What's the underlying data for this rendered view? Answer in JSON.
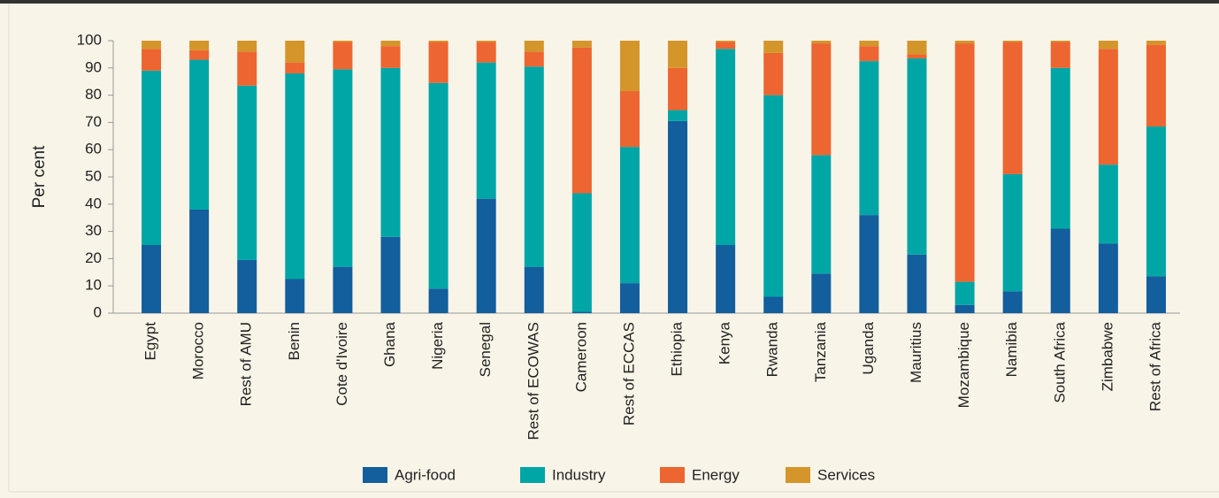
{
  "chart_data": {
    "type": "stacked_bar",
    "y_label": "Per cent",
    "categories": [
      "Egypt",
      "Morocco",
      "Rest of AMU",
      "Benin",
      "Cote d'Ivoire",
      "Ghana",
      "Nigeria",
      "Senegal",
      "Rest of ECOWAS",
      "Cameroon",
      "Rest of ECCAS",
      "Ethiopia",
      "Kenya",
      "Rwanda",
      "Tanzania",
      "Uganda",
      "Mauritius",
      "Mozambique",
      "Namibia",
      "South Africa",
      "Zimbabwe",
      "Rest of Africa"
    ],
    "series": [
      {
        "name": "Agri-food",
        "color": "#135e9c",
        "values": [
          25,
          38,
          19.5,
          12.5,
          17,
          28,
          9,
          42,
          17,
          0.5,
          11,
          70.5,
          25,
          6,
          14.5,
          36,
          21.5,
          3,
          8,
          31,
          25.5,
          13.5
        ]
      },
      {
        "name": "Industry",
        "color": "#00a6a6",
        "values": [
          64,
          55,
          64,
          75.5,
          72.5,
          62,
          75.5,
          50,
          73.5,
          43.5,
          50,
          4,
          72,
          74,
          43.5,
          56.5,
          72,
          8.5,
          43,
          59,
          29,
          55
        ]
      },
      {
        "name": "Energy",
        "color": "#ed6530",
        "values": [
          8,
          3.5,
          12.5,
          4,
          10,
          8,
          15,
          7.5,
          5.5,
          53.5,
          20.5,
          15.5,
          2.5,
          15.5,
          41,
          5.5,
          1.5,
          87.5,
          48.5,
          9.5,
          42.5,
          30
        ]
      },
      {
        "name": "Services",
        "color": "#d4952a",
        "values": [
          3,
          3.5,
          4,
          8,
          0.5,
          2,
          0.5,
          0.5,
          4,
          2.5,
          18.5,
          10,
          0.5,
          4.5,
          1,
          2,
          5,
          1,
          0.5,
          0.5,
          3,
          1.5
        ]
      }
    ],
    "ylim": [
      0,
      100
    ],
    "yticks": [
      0,
      10,
      20,
      30,
      40,
      50,
      60,
      70,
      80,
      90,
      100
    ]
  }
}
